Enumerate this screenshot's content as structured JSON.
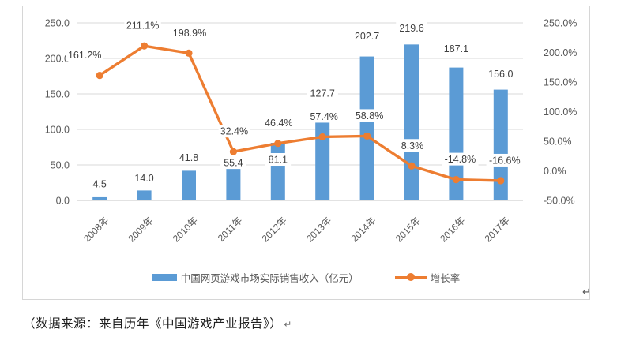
{
  "chart_data": {
    "type": "bar",
    "subtype": "combo-bar-line-dual-axis",
    "title": "",
    "categories": [
      "2008年",
      "2009年",
      "2010年",
      "2011年",
      "2012年",
      "2013年",
      "2014年",
      "2015年",
      "2016年",
      "2017年"
    ],
    "series": [
      {
        "name": "中国网页游戏市场实际销售收入（亿元）",
        "type": "bar",
        "axis": "left",
        "values": [
          4.5,
          14.0,
          41.8,
          55.4,
          81.1,
          127.7,
          202.7,
          219.6,
          187.1,
          156.0
        ],
        "labels": [
          "4.5",
          "14.0",
          "41.8",
          "55.4",
          "81.1",
          "127.7",
          "202.7",
          "219.6",
          "187.1",
          "156.0"
        ]
      },
      {
        "name": "增长率",
        "type": "line",
        "axis": "right",
        "values": [
          161.2,
          211.1,
          198.9,
          32.4,
          46.4,
          57.4,
          58.8,
          8.3,
          -14.8,
          -16.6
        ],
        "labels": [
          "161.2%",
          "211.1%",
          "198.9%",
          "32.4%",
          "46.4%",
          "57.4%",
          "58.8%",
          "8.3%",
          "-14.8%",
          "-16.6%"
        ]
      }
    ],
    "axes": {
      "left": {
        "min": 0,
        "max": 250,
        "step": 50,
        "tick_labels": [
          "0.0",
          "50.0",
          "100.0",
          "150.0",
          "200.0",
          "250.0"
        ]
      },
      "right": {
        "min": -50,
        "max": 250,
        "step": 50,
        "tick_labels": [
          "-50.0%",
          "0.0%",
          "50.0%",
          "100.0%",
          "150.0%",
          "200.0%",
          "250.0%"
        ]
      }
    },
    "grid": true,
    "legend_position": "bottom",
    "layout_hints": {
      "bar_label_dy": [
        -17,
        -16,
        -17,
        2,
        21,
        -21,
        -26,
        -21,
        -24,
        -20
      ],
      "line_label_dx": [
        -19,
        -2,
        1,
        1,
        1,
        2,
        3,
        1,
        5,
        5
      ],
      "line_label_dy": -26
    }
  },
  "colors": {
    "bar": "#5B9BD5",
    "line": "#ED7D31",
    "gridline": "#d9d9d9",
    "axis_line": "#c6c6c6",
    "tick_text": "#595959",
    "data_label_text": "#3f3f3f"
  },
  "legend": {
    "bar_label": "中国网页游戏市场实际销售收入（亿元）",
    "line_label": "增长率"
  },
  "source_note": "（数据来源：来自历年《中国游戏产业报告》）",
  "paragraph_mark": "↵"
}
